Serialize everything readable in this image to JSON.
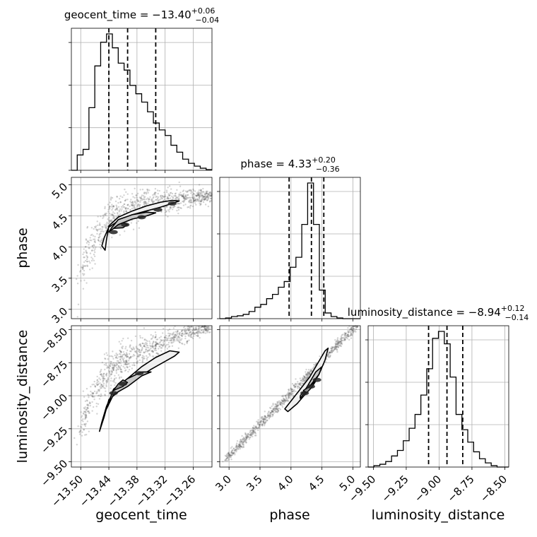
{
  "chart_data": {
    "type": "corner",
    "parameters": [
      "geocent_time",
      "phase",
      "luminosity_distance"
    ],
    "titles": [
      {
        "name": "geocent_time",
        "value": "−13.40",
        "plus": "+0.06",
        "minus": "−0.04"
      },
      {
        "name": "phase",
        "value": "4.33",
        "plus": "+0.20",
        "minus": "−0.36"
      },
      {
        "name": "luminosity_distance",
        "value": "−8.94",
        "plus": "+0.12",
        "minus": "−0.14"
      }
    ],
    "ranges": {
      "geocent_time": [
        -13.52,
        -13.22
      ],
      "phase": [
        2.85,
        5.12
      ],
      "luminosity_distance": [
        -9.54,
        -8.47
      ]
    },
    "ticks": {
      "geocent_time": [
        -13.5,
        -13.44,
        -13.38,
        -13.32,
        -13.26
      ],
      "phase": [
        3.0,
        3.5,
        4.0,
        4.5,
        5.0
      ],
      "luminosity_distance": [
        -9.5,
        -9.25,
        -9.0,
        -8.75,
        -8.5
      ]
    },
    "tick_labels": {
      "geocent_time": [
        "−13.50",
        "−13.44",
        "−13.38",
        "−13.32",
        "−13.26"
      ],
      "phase": [
        "3.0",
        "3.5",
        "4.0",
        "4.5",
        "5.0"
      ],
      "luminosity_distance": [
        "−9.50",
        "−9.25",
        "−9.00",
        "−8.75",
        "−8.50"
      ]
    },
    "quantiles": {
      "geocent_time": [
        -13.44,
        -13.4,
        -13.34
      ],
      "phase": [
        3.97,
        4.33,
        4.53
      ],
      "luminosity_distance": [
        -9.08,
        -8.94,
        -8.82
      ]
    },
    "histograms": {
      "geocent_time": {
        "edges_start": -13.52,
        "bin_width": 0.0125,
        "counts": [
          0,
          0.11,
          0.15,
          0.45,
          0.75,
          0.92,
          0.98,
          0.88,
          0.77,
          0.72,
          0.61,
          0.55,
          0.49,
          0.42,
          0.34,
          0.29,
          0.25,
          0.18,
          0.13,
          0.08,
          0.05,
          0.03,
          0.015,
          0.005
        ]
      },
      "phase": {
        "edges_start": 2.85,
        "bin_width": 0.0946,
        "counts": [
          0,
          0.005,
          0.015,
          0.02,
          0.03,
          0.05,
          0.08,
          0.1,
          0.14,
          0.17,
          0.22,
          0.26,
          0.36,
          0.43,
          0.66,
          0.95,
          0.66,
          0.2,
          0.04,
          0.015,
          0.005,
          0,
          0,
          0
        ]
      },
      "luminosity_distance": {
        "edges_start": -9.54,
        "bin_width": 0.0446,
        "counts": [
          0,
          0.01,
          0.02,
          0.04,
          0.08,
          0.12,
          0.19,
          0.28,
          0.38,
          0.52,
          0.71,
          0.93,
          0.98,
          0.89,
          0.65,
          0.38,
          0.27,
          0.18,
          0.11,
          0.06,
          0.03,
          0.01,
          0,
          0
        ]
      }
    },
    "contours": {
      "phase_vs_geocent_time": {
        "outer": [
          [
            -13.455,
            4.02
          ],
          [
            -13.45,
            4.15
          ],
          [
            -13.44,
            4.32
          ],
          [
            -13.42,
            4.42
          ],
          [
            -13.39,
            4.52
          ],
          [
            -13.36,
            4.58
          ],
          [
            -13.33,
            4.64
          ],
          [
            -13.305,
            4.7
          ],
          [
            -13.29,
            4.74
          ],
          [
            -13.305,
            4.75
          ],
          [
            -13.33,
            4.72
          ],
          [
            -13.36,
            4.66
          ],
          [
            -13.39,
            4.58
          ],
          [
            -13.42,
            4.48
          ],
          [
            -13.44,
            4.34
          ],
          [
            -13.445,
            4.12
          ],
          [
            -13.448,
            3.95
          ]
        ],
        "middle": [
          [
            -13.44,
            4.24
          ],
          [
            -13.42,
            4.36
          ],
          [
            -13.39,
            4.45
          ],
          [
            -13.36,
            4.5
          ],
          [
            -13.34,
            4.55
          ],
          [
            -13.36,
            4.56
          ],
          [
            -13.39,
            4.52
          ],
          [
            -13.42,
            4.44
          ],
          [
            -13.435,
            4.3
          ]
        ],
        "inner": [
          [
            -13.43,
            4.3
          ],
          [
            -13.42,
            4.36
          ],
          [
            -13.41,
            4.39
          ],
          [
            -13.4,
            4.36
          ],
          [
            -13.41,
            4.31
          ]
        ],
        "dense_blobs": [
          [
            -13.405,
            4.36
          ],
          [
            -13.43,
            4.24
          ],
          [
            -13.37,
            4.48
          ],
          [
            -13.335,
            4.6
          ],
          [
            -13.305,
            4.7
          ]
        ]
      },
      "luminosity_distance_vs_geocent_time": {
        "outer": [
          [
            -13.46,
            -9.27
          ],
          [
            -13.45,
            -9.16
          ],
          [
            -13.44,
            -9.03
          ],
          [
            -13.41,
            -8.94
          ],
          [
            -13.38,
            -8.87
          ],
          [
            -13.35,
            -8.8
          ],
          [
            -13.32,
            -8.74
          ],
          [
            -13.3,
            -8.7
          ],
          [
            -13.29,
            -8.67
          ],
          [
            -13.31,
            -8.66
          ],
          [
            -13.34,
            -8.71
          ],
          [
            -13.37,
            -8.78
          ],
          [
            -13.4,
            -8.87
          ],
          [
            -13.43,
            -8.96
          ],
          [
            -13.445,
            -9.08
          ],
          [
            -13.455,
            -9.2
          ]
        ],
        "middle": [
          [
            -13.445,
            -9.1
          ],
          [
            -13.43,
            -8.99
          ],
          [
            -13.4,
            -8.93
          ],
          [
            -13.37,
            -8.85
          ],
          [
            -13.35,
            -8.82
          ],
          [
            -13.37,
            -8.82
          ],
          [
            -13.4,
            -8.87
          ],
          [
            -13.43,
            -8.95
          ],
          [
            -13.44,
            -9.05
          ]
        ],
        "inner": [
          [
            -13.43,
            -8.96
          ],
          [
            -13.41,
            -8.93
          ],
          [
            -13.4,
            -8.9
          ],
          [
            -13.41,
            -8.88
          ],
          [
            -13.42,
            -8.91
          ]
        ],
        "dense_blobs": [
          [
            -13.41,
            -8.91
          ],
          [
            -13.43,
            -8.98
          ],
          [
            -13.375,
            -8.83
          ]
        ]
      },
      "luminosity_distance_vs_phase": {
        "outer": [
          [
            3.9,
            -9.1
          ],
          [
            4.1,
            -8.98
          ],
          [
            4.3,
            -8.86
          ],
          [
            4.45,
            -8.74
          ],
          [
            4.55,
            -8.66
          ],
          [
            4.6,
            -8.64
          ],
          [
            4.55,
            -8.73
          ],
          [
            4.45,
            -8.84
          ],
          [
            4.3,
            -8.95
          ],
          [
            4.1,
            -9.06
          ],
          [
            3.95,
            -9.12
          ]
        ],
        "middle": [
          [
            4.15,
            -9.02
          ],
          [
            4.3,
            -8.93
          ],
          [
            4.45,
            -8.84
          ],
          [
            4.5,
            -8.78
          ],
          [
            4.4,
            -8.82
          ],
          [
            4.25,
            -8.94
          ],
          [
            4.15,
            -9.0
          ]
        ],
        "inner": [
          [
            4.2,
            -8.96
          ],
          [
            4.3,
            -8.93
          ],
          [
            4.4,
            -8.89
          ],
          [
            4.33,
            -8.94
          ],
          [
            4.25,
            -8.98
          ]
        ],
        "dense_blobs": [
          [
            4.32,
            -8.93
          ],
          [
            4.22,
            -8.98
          ],
          [
            4.42,
            -8.88
          ]
        ]
      }
    },
    "scatter_seed": 12345,
    "grid": true
  }
}
